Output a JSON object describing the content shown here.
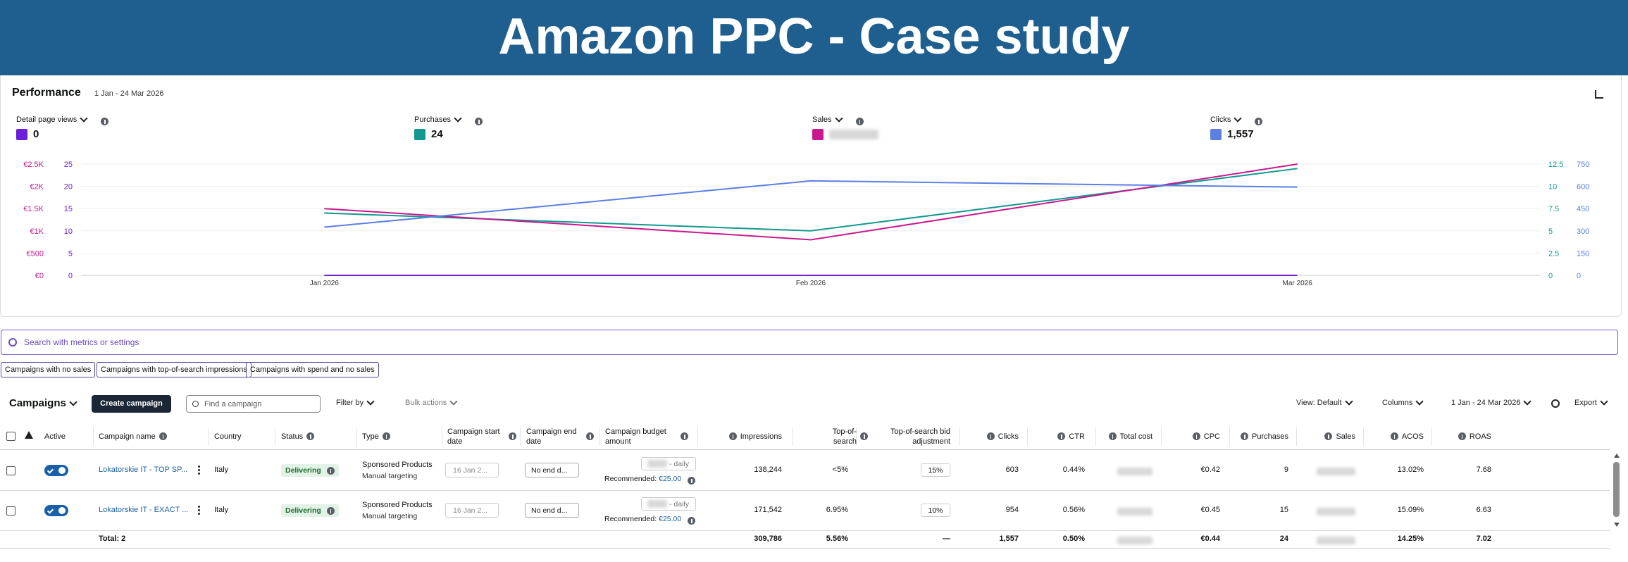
{
  "header": {
    "title": "Amazon PPC - Case study"
  },
  "performance": {
    "title": "Performance",
    "date_range": "1 Jan - 24 Mar 2026",
    "metrics": [
      {
        "value": "0"
      },
      {
        "value": "24"
      },
      {
        "blurred": true
      },
      {
        "value": "1,557"
      }
    ]
  },
  "chart_data": {
    "type": "line",
    "categories": [
      "Jan 2026",
      "Feb 2026",
      "Mar 2026"
    ],
    "grid": true,
    "series": [
      {
        "name": "Detail page views",
        "color": "#6b1fd6",
        "values": [
          0,
          0,
          0
        ],
        "ylim": [
          0,
          25
        ],
        "yticks": [
          0,
          5,
          10,
          15,
          20,
          25
        ],
        "axis": "left"
      },
      {
        "name": "Purchases",
        "color": "#12988f",
        "values": [
          7,
          5,
          12
        ],
        "ylim": [
          0,
          12.5
        ],
        "yticks": [
          0,
          2.5,
          5,
          7.5,
          10,
          12.5
        ],
        "axis": "right"
      },
      {
        "name": "Sales",
        "color": "#c8198f",
        "values": [
          1500,
          800,
          2500
        ],
        "ylim": [
          0,
          2500
        ],
        "yticks": [
          {
            "value": 0,
            "label": "€0"
          },
          {
            "value": 500,
            "label": "€500"
          },
          {
            "value": 1000,
            "label": "€1K"
          },
          {
            "value": 1500,
            "label": "€1.5K"
          },
          {
            "value": 2000,
            "label": "€2K"
          },
          {
            "value": 2500,
            "label": "€2.5K"
          }
        ],
        "axis": "left"
      },
      {
        "name": "Clicks",
        "color": "#5b7fe3",
        "values": [
          325,
          637,
          595
        ],
        "ylim": [
          0,
          750
        ],
        "yticks": [
          0,
          150,
          300,
          450,
          600,
          750
        ],
        "axis": "right"
      }
    ]
  },
  "search": {
    "placeholder": "Search with metrics or settings"
  },
  "filters": [
    "Campaigns with no sales",
    "Campaigns with top-of-search impressions",
    "Campaigns with spend and no sales"
  ],
  "toolbar": {
    "title": "Campaigns",
    "create": "Create campaign",
    "find_placeholder": "Find a campaign",
    "filter_by": "Filter by",
    "bulk_actions": "Bulk actions",
    "view": "View: Default",
    "columns": "Columns",
    "date_range": "1 Jan - 24 Mar 2026",
    "export": "Export"
  },
  "table": {
    "columns": [
      "Active",
      "Campaign name",
      "Country",
      "Status",
      "Type",
      "Campaign start date",
      "Campaign end date",
      "Campaign budget amount",
      "Impressions",
      "Top-of-search",
      "Top-of-search bid adjustment",
      "Clicks",
      "CTR",
      "Total cost",
      "CPC",
      "Purchases",
      "Sales",
      "ACOS",
      "ROAS"
    ],
    "rows": [
      {
        "name": "Lokatorskie IT - TOP SP...",
        "country": "Italy",
        "status": "Delivering",
        "type": "Sponsored Products",
        "targeting": "Manual targeting",
        "start_date": "16 Jan 2...",
        "end_date": "No end d...",
        "budget": "- daily",
        "recommended_label": "Recommended:",
        "recommended_value": "€25.00",
        "impressions": "138,244",
        "top_of_search": "<5%",
        "bid_adjustment": "15%",
        "clicks": "603",
        "ctr": "0.44%",
        "cpc": "€0.42",
        "purchases": "9",
        "acos": "13.02%",
        "roas": "7.68"
      },
      {
        "name": "Lokatorskie IT - EXACT ...",
        "country": "Italy",
        "status": "Delivering",
        "type": "Sponsored Products",
        "targeting": "Manual targeting",
        "start_date": "16 Jan 2...",
        "end_date": "No end d...",
        "budget": "- daily",
        "recommended_label": "Recommended:",
        "recommended_value": "€25.00",
        "impressions": "171,542",
        "top_of_search": "6.95%",
        "bid_adjustment": "10%",
        "clicks": "954",
        "ctr": "0.56%",
        "cpc": "€0.45",
        "purchases": "15",
        "acos": "15.09%",
        "roas": "6.63"
      }
    ],
    "total": {
      "label": "Total: 2",
      "impressions": "309,786",
      "top_of_search": "5.56%",
      "bid_adjustment": "—",
      "clicks": "1,557",
      "ctr": "0.50%",
      "cpc": "€0.44",
      "purchases": "24",
      "acos": "14.25%",
      "roas": "7.02"
    }
  }
}
